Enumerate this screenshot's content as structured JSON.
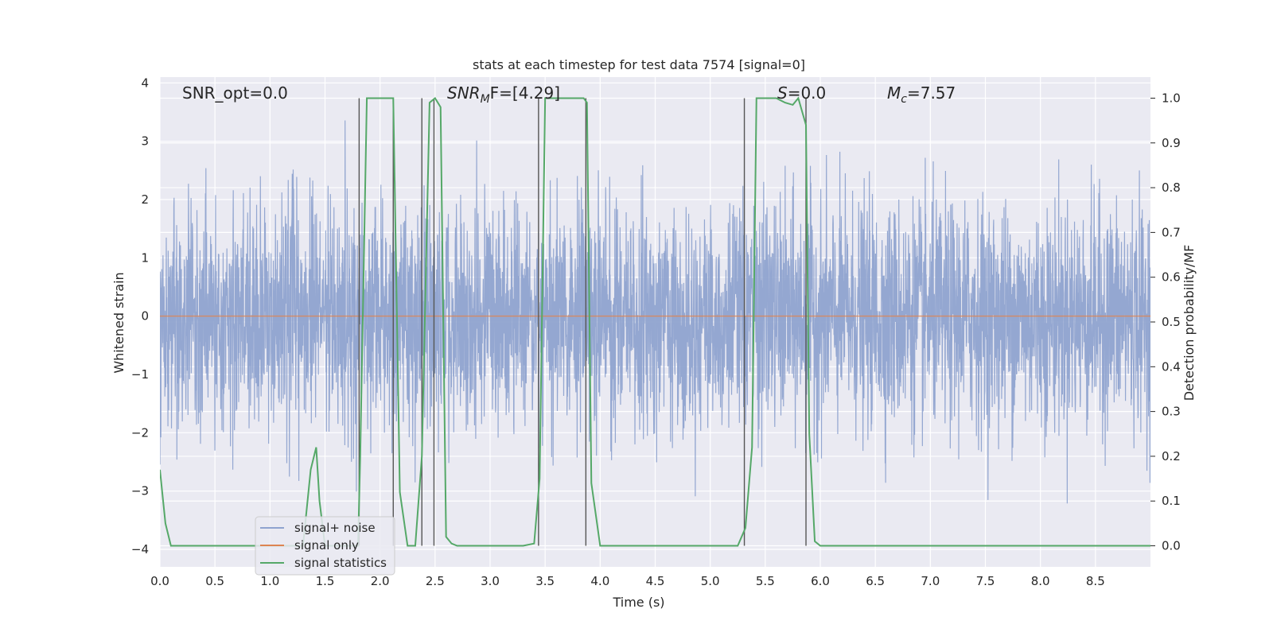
{
  "chart_data": {
    "type": "line",
    "title": "stats at each timestep for test data 7574 [signal=0]",
    "xlabel": "Time (s)",
    "ylabel_left": "Whitened strain",
    "ylabel_right": "Detection probability/MF",
    "xlim": [
      0.0,
      9.0
    ],
    "ylim_left": [
      -4.3,
      4.1
    ],
    "ylim_right": [
      -0.047,
      1.047
    ],
    "x_ticks": [
      "0.0",
      "0.5",
      "1.0",
      "1.5",
      "2.0",
      "2.5",
      "3.0",
      "3.5",
      "4.0",
      "4.5",
      "5.0",
      "5.5",
      "6.0",
      "6.5",
      "7.0",
      "7.5",
      "8.0",
      "8.5"
    ],
    "y_ticks_left": [
      "4",
      "3",
      "2",
      "1",
      "0",
      "−1",
      "−2",
      "−3",
      "−4"
    ],
    "y_ticks_right": [
      "1.0",
      "0.9",
      "0.8",
      "0.7",
      "0.6",
      "0.5",
      "0.4",
      "0.3",
      "0.2",
      "0.1",
      "0.0"
    ],
    "grid": true,
    "legend_position": "lower-left",
    "annotations": {
      "snr_opt": "SNR_opt=0.0",
      "snr_mf_main": "SNR",
      "snr_mf_sub": "M",
      "snr_mf_rest": "F=[4.29]",
      "s_italic": "S",
      "s_rest": "=0.0",
      "mc_italic": "M",
      "mc_sub": "c",
      "mc_rest": "=7.57"
    },
    "series": [
      {
        "name": "signal+ noise",
        "color": "#8fa3cf",
        "description": "whitened strain noise, approx std 0.95, peaks to about ±3.8",
        "noise_std": 0.95
      },
      {
        "name": "signal only",
        "color": "#dd8452",
        "x": [
          0.0,
          9.0
        ],
        "y": [
          0.0,
          0.0
        ]
      },
      {
        "name": "signal statistics",
        "color": "#55a868",
        "axis": "right",
        "x": [
          0.0,
          0.05,
          0.1,
          0.5,
          1.0,
          1.3,
          1.37,
          1.42,
          1.45,
          1.5,
          1.55,
          1.6,
          1.8,
          1.82,
          1.88,
          1.9,
          2.0,
          2.12,
          2.18,
          2.25,
          2.32,
          2.38,
          2.45,
          2.5,
          2.55,
          2.6,
          2.65,
          2.7,
          3.0,
          3.3,
          3.4,
          3.45,
          3.5,
          3.85,
          3.88,
          3.92,
          4.0,
          4.5,
          5.0,
          5.25,
          5.32,
          5.38,
          5.42,
          5.6,
          5.68,
          5.75,
          5.8,
          5.87,
          5.9,
          5.95,
          6.0,
          6.5,
          7.0,
          7.5,
          8.0,
          8.5,
          9.0
        ],
        "y": [
          0.17,
          0.05,
          0.0,
          0.0,
          0.0,
          0.0,
          0.17,
          0.22,
          0.1,
          0.0,
          0.0,
          0.0,
          0.0,
          0.2,
          1.0,
          1.0,
          1.0,
          1.0,
          0.12,
          0.0,
          0.0,
          0.2,
          0.99,
          1.0,
          0.98,
          0.02,
          0.005,
          0.0,
          0.0,
          0.0,
          0.005,
          0.15,
          1.0,
          1.0,
          0.99,
          0.14,
          0.0,
          0.0,
          0.0,
          0.0,
          0.04,
          0.22,
          1.0,
          1.0,
          0.99,
          0.985,
          1.0,
          0.94,
          0.25,
          0.01,
          0.0,
          0.0,
          0.0,
          0.0,
          0.0,
          0.0,
          0.0
        ]
      }
    ],
    "vlines_x": [
      1.81,
      2.12,
      2.38,
      2.49,
      3.44,
      3.87,
      5.31,
      5.87
    ]
  }
}
